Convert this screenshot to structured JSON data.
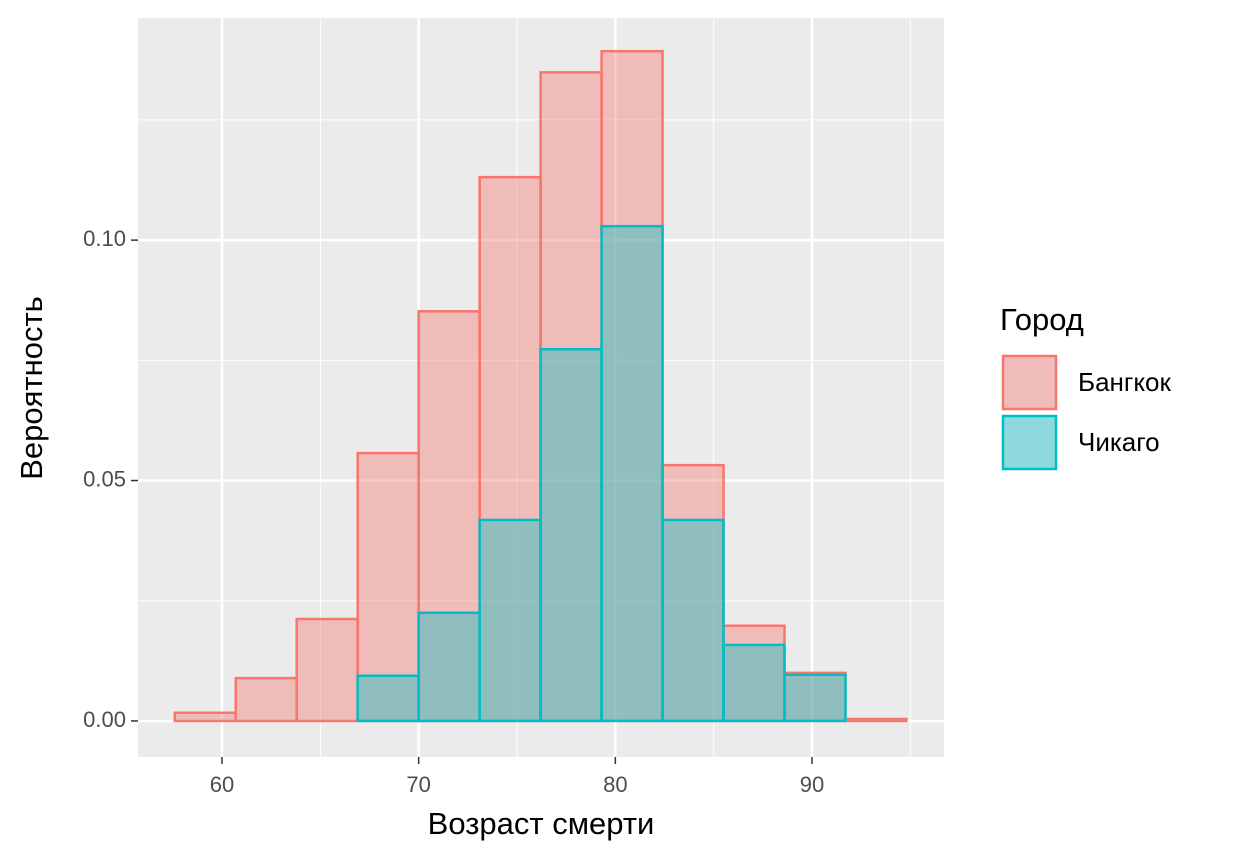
{
  "chart_data": {
    "type": "histogram",
    "xlabel": "Возраст смерти",
    "ylabel": "Вероятность",
    "legend_title": "Город",
    "legend_position": "right",
    "bins": [
      57.6,
      60.7,
      63.8,
      66.9,
      70.0,
      73.1,
      76.2,
      79.3,
      82.4,
      85.5,
      88.6,
      91.7,
      94.8
    ],
    "series": [
      {
        "name": "Бангкок",
        "color": "#f8766d",
        "values": [
          0.0017,
          0.0089,
          0.0212,
          0.0557,
          0.0852,
          0.1131,
          0.1349,
          0.1393,
          0.0532,
          0.0198,
          0.01,
          0.0004
        ]
      },
      {
        "name": "Чикаго",
        "color": "#00bfc4",
        "values": [
          0,
          0,
          0,
          0.0094,
          0.0225,
          0.0418,
          0.0773,
          0.1029,
          0.0418,
          0.0158,
          0.0096,
          0
        ]
      }
    ],
    "fill_opacity": 0.4,
    "xlim": [
      55.73,
      96.71
    ],
    "ylim": [
      -0.0075,
      0.1462
    ],
    "xticks": [
      60,
      70,
      80,
      90
    ],
    "yticks": [
      {
        "value": 0,
        "label": "0.00"
      },
      {
        "value": 0.05,
        "label": "0.05"
      },
      {
        "value": 0.1,
        "label": "0.10"
      }
    ],
    "x_minor_ticks": [
      65,
      75,
      85,
      95
    ],
    "y_minor_ticks": [
      0.025,
      0.075,
      0.125
    ],
    "grid": true
  }
}
